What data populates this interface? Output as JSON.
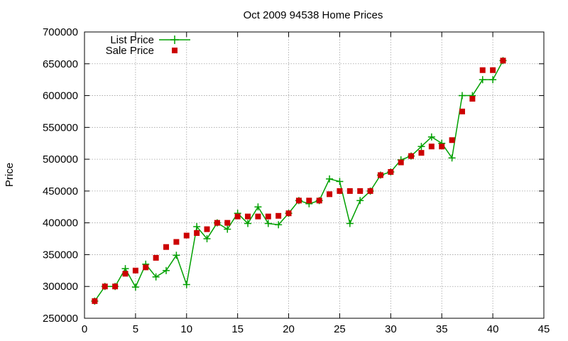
{
  "chart_data": {
    "type": "line",
    "title": "Oct 2009 94538 Home Prices",
    "xlabel": "",
    "ylabel": "Price",
    "xlim": [
      0,
      45
    ],
    "ylim": [
      250000,
      700000
    ],
    "xticks": [
      0,
      5,
      10,
      15,
      20,
      25,
      30,
      35,
      40,
      45
    ],
    "yticks": [
      250000,
      300000,
      350000,
      400000,
      450000,
      500000,
      550000,
      600000,
      650000,
      700000
    ],
    "grid": true,
    "legend_position": "top-left",
    "series": [
      {
        "name": "List Price",
        "style": "line-with-plus-markers",
        "color": "#00a000",
        "x": [
          1,
          2,
          3,
          4,
          5,
          6,
          7,
          8,
          9,
          10,
          11,
          12,
          13,
          14,
          15,
          16,
          17,
          18,
          19,
          20,
          21,
          22,
          23,
          24,
          25,
          26,
          27,
          28,
          29,
          30,
          31,
          32,
          33,
          34,
          35,
          36,
          37,
          38,
          39,
          40,
          41
        ],
        "values": [
          277000,
          300000,
          300000,
          328000,
          299000,
          335000,
          315000,
          325000,
          349000,
          303000,
          394000,
          375000,
          400000,
          390000,
          415000,
          399000,
          425000,
          399000,
          397000,
          415000,
          435000,
          430000,
          435000,
          469000,
          465000,
          399000,
          435000,
          450000,
          475000,
          480000,
          499000,
          505000,
          520000,
          535000,
          525000,
          502000,
          600000,
          600000,
          625000,
          625000,
          655000
        ]
      },
      {
        "name": "Sale Price",
        "style": "square-markers",
        "color": "#cc0000",
        "x": [
          1,
          2,
          3,
          4,
          5,
          6,
          7,
          8,
          9,
          10,
          11,
          12,
          13,
          14,
          15,
          16,
          17,
          18,
          19,
          20,
          21,
          22,
          23,
          24,
          25,
          26,
          27,
          28,
          29,
          30,
          31,
          32,
          33,
          34,
          35,
          36,
          37,
          38,
          39,
          40,
          41
        ],
        "values": [
          277000,
          300000,
          300000,
          320000,
          325000,
          330000,
          345000,
          362000,
          370000,
          380000,
          384000,
          390000,
          400000,
          400000,
          410000,
          410000,
          410000,
          410000,
          411000,
          415000,
          435000,
          435000,
          435000,
          445000,
          450000,
          450000,
          450000,
          450000,
          475000,
          480000,
          495000,
          505000,
          510000,
          520000,
          520000,
          530000,
          575000,
          595000,
          640000,
          640000,
          655000
        ]
      }
    ]
  }
}
